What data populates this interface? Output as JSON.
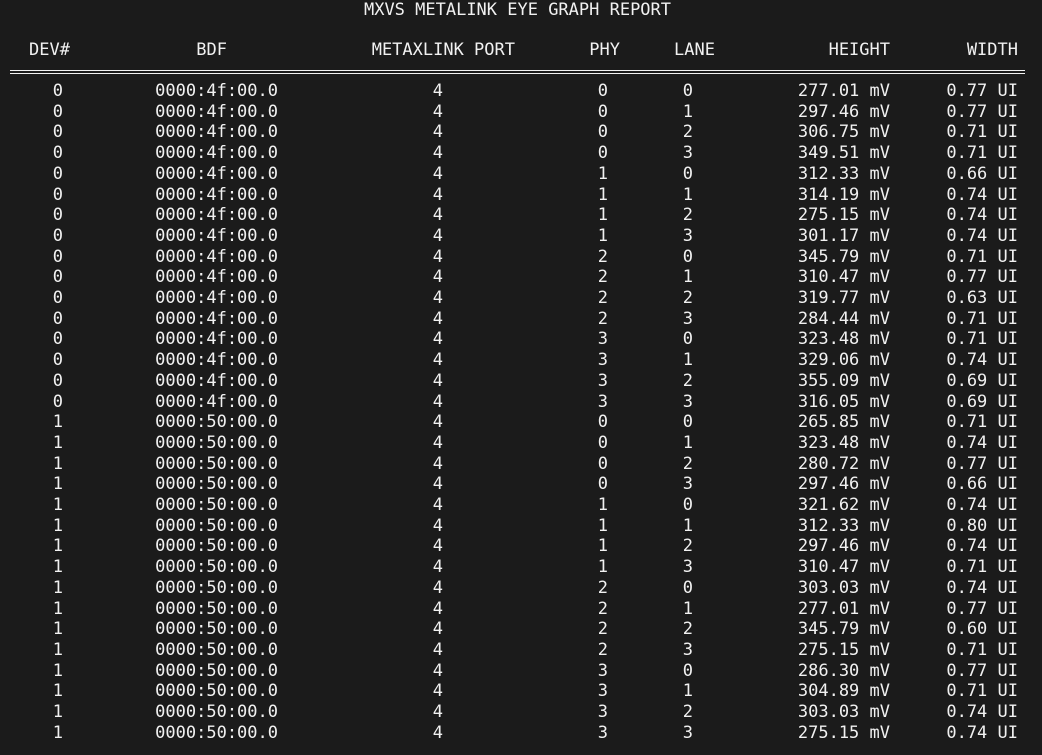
{
  "report": {
    "title": "MXVS METALINK EYE GRAPH REPORT",
    "columns": [
      "DEV#",
      "BDF",
      "METAXLINK PORT",
      "PHY",
      "LANE",
      "HEIGHT",
      "WIDTH"
    ],
    "rows": [
      [
        "0",
        "0000:4f:00.0",
        "4",
        "0",
        "0",
        "277.01 mV",
        "0.77 UI"
      ],
      [
        "0",
        "0000:4f:00.0",
        "4",
        "0",
        "1",
        "297.46 mV",
        "0.77 UI"
      ],
      [
        "0",
        "0000:4f:00.0",
        "4",
        "0",
        "2",
        "306.75 mV",
        "0.71 UI"
      ],
      [
        "0",
        "0000:4f:00.0",
        "4",
        "0",
        "3",
        "349.51 mV",
        "0.71 UI"
      ],
      [
        "0",
        "0000:4f:00.0",
        "4",
        "1",
        "0",
        "312.33 mV",
        "0.66 UI"
      ],
      [
        "0",
        "0000:4f:00.0",
        "4",
        "1",
        "1",
        "314.19 mV",
        "0.74 UI"
      ],
      [
        "0",
        "0000:4f:00.0",
        "4",
        "1",
        "2",
        "275.15 mV",
        "0.74 UI"
      ],
      [
        "0",
        "0000:4f:00.0",
        "4",
        "1",
        "3",
        "301.17 mV",
        "0.74 UI"
      ],
      [
        "0",
        "0000:4f:00.0",
        "4",
        "2",
        "0",
        "345.79 mV",
        "0.71 UI"
      ],
      [
        "0",
        "0000:4f:00.0",
        "4",
        "2",
        "1",
        "310.47 mV",
        "0.77 UI"
      ],
      [
        "0",
        "0000:4f:00.0",
        "4",
        "2",
        "2",
        "319.77 mV",
        "0.63 UI"
      ],
      [
        "0",
        "0000:4f:00.0",
        "4",
        "2",
        "3",
        "284.44 mV",
        "0.71 UI"
      ],
      [
        "0",
        "0000:4f:00.0",
        "4",
        "3",
        "0",
        "323.48 mV",
        "0.71 UI"
      ],
      [
        "0",
        "0000:4f:00.0",
        "4",
        "3",
        "1",
        "329.06 mV",
        "0.74 UI"
      ],
      [
        "0",
        "0000:4f:00.0",
        "4",
        "3",
        "2",
        "355.09 mV",
        "0.69 UI"
      ],
      [
        "0",
        "0000:4f:00.0",
        "4",
        "3",
        "3",
        "316.05 mV",
        "0.69 UI"
      ],
      [
        "1",
        "0000:50:00.0",
        "4",
        "0",
        "0",
        "265.85 mV",
        "0.71 UI"
      ],
      [
        "1",
        "0000:50:00.0",
        "4",
        "0",
        "1",
        "323.48 mV",
        "0.74 UI"
      ],
      [
        "1",
        "0000:50:00.0",
        "4",
        "0",
        "2",
        "280.72 mV",
        "0.77 UI"
      ],
      [
        "1",
        "0000:50:00.0",
        "4",
        "0",
        "3",
        "297.46 mV",
        "0.66 UI"
      ],
      [
        "1",
        "0000:50:00.0",
        "4",
        "1",
        "0",
        "321.62 mV",
        "0.74 UI"
      ],
      [
        "1",
        "0000:50:00.0",
        "4",
        "1",
        "1",
        "312.33 mV",
        "0.80 UI"
      ],
      [
        "1",
        "0000:50:00.0",
        "4",
        "1",
        "2",
        "297.46 mV",
        "0.74 UI"
      ],
      [
        "1",
        "0000:50:00.0",
        "4",
        "1",
        "3",
        "310.47 mV",
        "0.71 UI"
      ],
      [
        "1",
        "0000:50:00.0",
        "4",
        "2",
        "0",
        "303.03 mV",
        "0.74 UI"
      ],
      [
        "1",
        "0000:50:00.0",
        "4",
        "2",
        "1",
        "277.01 mV",
        "0.77 UI"
      ],
      [
        "1",
        "0000:50:00.0",
        "4",
        "2",
        "2",
        "345.79 mV",
        "0.60 UI"
      ],
      [
        "1",
        "0000:50:00.0",
        "4",
        "2",
        "3",
        "275.15 mV",
        "0.71 UI"
      ],
      [
        "1",
        "0000:50:00.0",
        "4",
        "3",
        "0",
        "286.30 mV",
        "0.77 UI"
      ],
      [
        "1",
        "0000:50:00.0",
        "4",
        "3",
        "1",
        "304.89 mV",
        "0.71 UI"
      ],
      [
        "1",
        "0000:50:00.0",
        "4",
        "3",
        "2",
        "303.03 mV",
        "0.74 UI"
      ],
      [
        "1",
        "0000:50:00.0",
        "4",
        "3",
        "3",
        "275.15 mV",
        "0.74 UI"
      ]
    ]
  },
  "colors": {
    "background": "#1b1b1b",
    "text": "#f1f1f1",
    "rule": "#f1f1f1"
  }
}
